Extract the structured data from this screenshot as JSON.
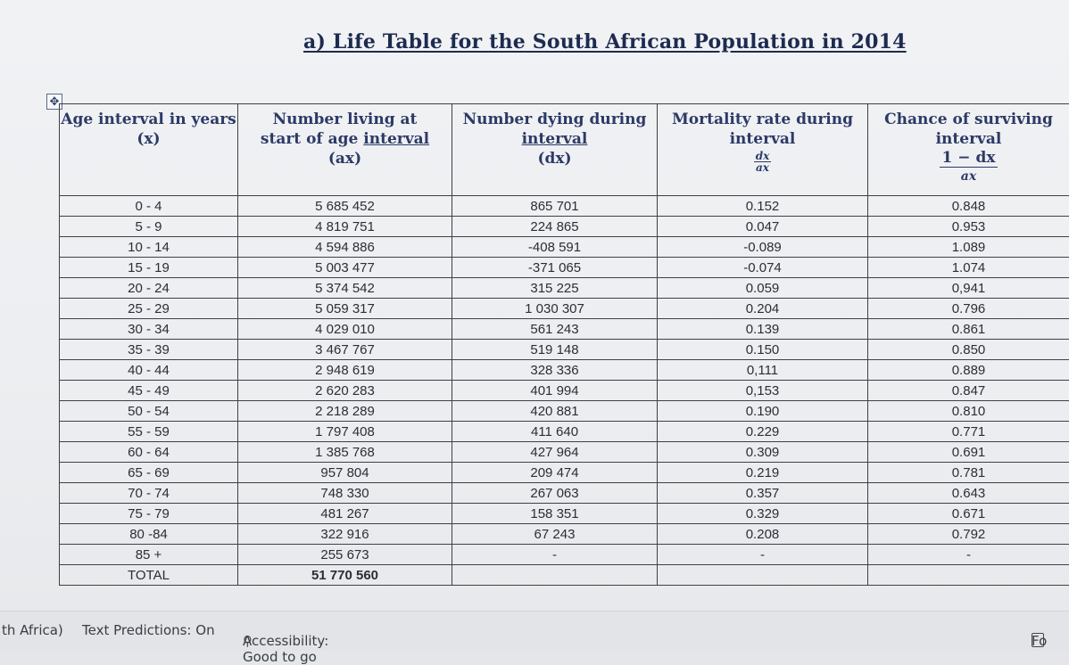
{
  "title": "a) Life Table for the South African Population in 2014",
  "table_handle_icon": "move-arrows-icon",
  "headers": [
    {
      "line1": "Age interval in years",
      "line2": "(x)"
    },
    {
      "line1": "Number living at",
      "line2": "start of age ",
      "line2b": "interval",
      "line3": "(ax)"
    },
    {
      "line1": "Number dying during",
      "line2": "interval",
      "line3": "(dx)"
    },
    {
      "line1": "Mortality rate during",
      "line2": "interval",
      "frac_num": "dx",
      "frac_den": "ax"
    },
    {
      "line1": "Chance of surviving",
      "line2": "interval",
      "frac_num": "1 − dx",
      "frac_den": "ax"
    }
  ],
  "rows": [
    [
      "0 - 4",
      "5 685 452",
      "865 701",
      "0.152",
      "0.848"
    ],
    [
      "5 - 9",
      "4 819 751",
      "224 865",
      "0.047",
      "0.953"
    ],
    [
      "10 - 14",
      "4 594 886",
      "-408 591",
      "-0.089",
      "1.089"
    ],
    [
      "15 - 19",
      "5 003 477",
      "-371 065",
      "-0.074",
      "1.074"
    ],
    [
      "20 - 24",
      "5 374 542",
      "315 225",
      "0.059",
      "0,941"
    ],
    [
      "25 - 29",
      "5 059 317",
      "1 030 307",
      "0.204",
      "0.796"
    ],
    [
      "30 - 34",
      "4 029 010",
      "561 243",
      "0.139",
      "0.861"
    ],
    [
      "35 - 39",
      "3 467 767",
      "519 148",
      "0.150",
      "0.850"
    ],
    [
      "40 - 44",
      "2 948 619",
      "328 336",
      "0,111",
      "0.889"
    ],
    [
      "45 - 49",
      "2 620 283",
      "401 994",
      "0,153",
      "0.847"
    ],
    [
      "50 - 54",
      "2 218 289",
      "420 881",
      "0.190",
      "0.810"
    ],
    [
      "55 - 59",
      "1 797 408",
      "411 640",
      "0.229",
      "0.771"
    ],
    [
      "60 - 64",
      "1 385 768",
      "427 964",
      "0.309",
      "0.691"
    ],
    [
      "65 - 69",
      "957 804",
      "209 474",
      "0.219",
      "0.781"
    ],
    [
      "70 - 74",
      "748 330",
      "267 063",
      "0.357",
      "0.643"
    ],
    [
      "75 - 79",
      "481 267",
      "158 351",
      "0.329",
      "0.671"
    ],
    [
      "80 -84",
      "322 916",
      "67 243",
      "0.208",
      "0.792"
    ],
    [
      "85 +",
      "255 673",
      "-",
      "-",
      "-"
    ]
  ],
  "total": {
    "label": "TOTAL",
    "value": "51 770 560"
  },
  "status_bar": {
    "language": "th Africa)",
    "text_predictions": "Text Predictions: On",
    "accessibility": "Accessibility: Good to go",
    "focus": "Fo"
  }
}
